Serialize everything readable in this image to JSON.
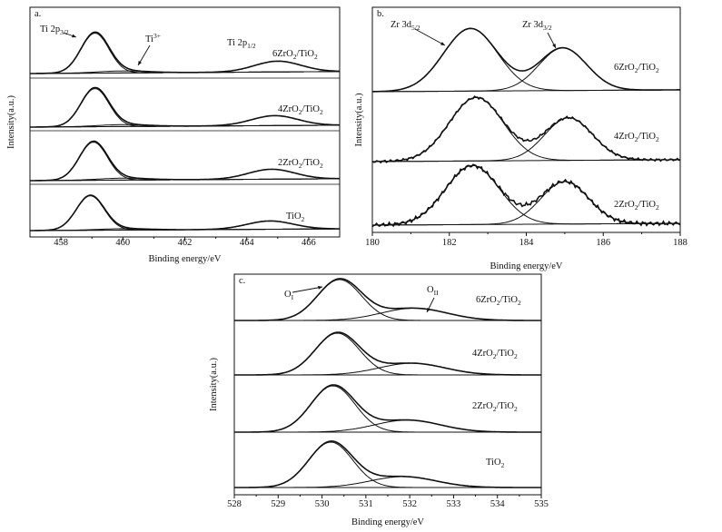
{
  "chart_data": [
    {
      "type": "line",
      "panel_label": "a.",
      "xlabel": "Binding energy/eV",
      "ylabel": "Intensity(a.u.)",
      "xlim": [
        457,
        467
      ],
      "xticks": [
        458,
        460,
        462,
        464,
        466
      ],
      "annotations": [
        {
          "text": "Ti 2p",
          "sub": "3/2"
        },
        {
          "text": "Ti",
          "sup": "3+"
        },
        {
          "text": "Ti 2p",
          "sub": "1/2"
        }
      ],
      "series": [
        {
          "name": "6ZrO2/TiO2",
          "label_main": "6ZrO",
          "label_sub1": "2",
          "label_mid": "/TiO",
          "label_sub2": "2",
          "peaks": [
            {
              "center": 459.1,
              "height": 1.0,
              "width": 0.45
            },
            {
              "center": 465.0,
              "height": 0.27,
              "width": 0.75
            },
            {
              "center": 460.0,
              "height": 0.05,
              "width": 0.8
            }
          ],
          "baseline_rise": 0.05
        },
        {
          "name": "4ZrO2/TiO2",
          "label_main": "4ZrO",
          "label_sub1": "2",
          "label_mid": "/TiO",
          "label_sub2": "2",
          "peaks": [
            {
              "center": 459.1,
              "height": 1.0,
              "width": 0.45
            },
            {
              "center": 464.9,
              "height": 0.26,
              "width": 0.75
            },
            {
              "center": 460.0,
              "height": 0.05,
              "width": 0.8
            }
          ],
          "baseline_rise": 0.05
        },
        {
          "name": "2ZrO2/TiO2",
          "label_main": "2ZrO",
          "label_sub1": "2",
          "label_mid": "/TiO",
          "label_sub2": "2",
          "peaks": [
            {
              "center": 459.05,
              "height": 1.0,
              "width": 0.45
            },
            {
              "center": 464.8,
              "height": 0.26,
              "width": 0.75
            },
            {
              "center": 460.0,
              "height": 0.05,
              "width": 0.8
            }
          ],
          "baseline_rise": 0.05
        },
        {
          "name": "TiO2",
          "label_main": "TiO",
          "label_sub1": "2",
          "label_mid": "",
          "label_sub2": "",
          "peaks": [
            {
              "center": 458.95,
              "height": 1.0,
              "width": 0.45
            },
            {
              "center": 464.75,
              "height": 0.24,
              "width": 0.75
            },
            {
              "center": 460.0,
              "height": 0.04,
              "width": 0.8
            }
          ],
          "baseline_rise": 0.05
        }
      ]
    },
    {
      "type": "line",
      "panel_label": "b.",
      "xlabel": "Binding energy/eV",
      "ylabel": "Intensity(a.u.)",
      "xlim": [
        180,
        188
      ],
      "xticks": [
        180,
        182,
        184,
        186,
        188
      ],
      "annotations": [
        {
          "text": "Zr 3d",
          "sub": "5/2"
        },
        {
          "text": "Zr 3d",
          "sub": "3/2"
        }
      ],
      "series": [
        {
          "name": "6ZrO2/TiO2",
          "label_main": "6ZrO",
          "label_sub1": "2",
          "label_mid": "/TiO",
          "label_sub2": "2",
          "peaks": [
            {
              "center": 182.55,
              "height": 1.0,
              "width": 0.7
            },
            {
              "center": 184.95,
              "height": 0.68,
              "width": 0.62
            }
          ],
          "noise": 0.0,
          "baseline_rise": 0.03
        },
        {
          "name": "4ZrO2/TiO2",
          "label_main": "4ZrO",
          "label_sub1": "2",
          "label_mid": "/TiO",
          "label_sub2": "2",
          "peaks": [
            {
              "center": 182.7,
              "height": 1.0,
              "width": 0.7
            },
            {
              "center": 185.1,
              "height": 0.67,
              "width": 0.62
            }
          ],
          "noise": 0.02,
          "baseline_rise": 0.03
        },
        {
          "name": "2ZrO2/TiO2",
          "label_main": "2ZrO",
          "label_sub1": "2",
          "label_mid": "/TiO",
          "label_sub2": "2",
          "peaks": [
            {
              "center": 182.6,
              "height": 1.0,
              "width": 0.7
            },
            {
              "center": 185.0,
              "height": 0.72,
              "width": 0.62
            }
          ],
          "noise": 0.035,
          "baseline_rise": 0.03
        }
      ]
    },
    {
      "type": "line",
      "panel_label": "c.",
      "xlabel": "Binding energy/eV",
      "ylabel": "Intensity(a.u.)",
      "xlim": [
        528,
        535
      ],
      "xticks": [
        528,
        529,
        530,
        531,
        532,
        533,
        534,
        535
      ],
      "annotations": [
        {
          "text": "O",
          "sub": "I"
        },
        {
          "text": "O",
          "sub": "II"
        }
      ],
      "series": [
        {
          "name": "6ZrO2/TiO2",
          "label_main": "6ZrO",
          "label_sub1": "2",
          "label_mid": "/TiO",
          "label_sub2": "2",
          "peaks": [
            {
              "center": 530.4,
              "height": 1.0,
              "width": 0.5
            },
            {
              "center": 532.1,
              "height": 0.3,
              "width": 0.75
            }
          ],
          "baseline_rise": 0.0
        },
        {
          "name": "4ZrO2/TiO2",
          "label_main": "4ZrO",
          "label_sub1": "2",
          "label_mid": "/TiO",
          "label_sub2": "2",
          "peaks": [
            {
              "center": 530.35,
              "height": 1.0,
              "width": 0.5
            },
            {
              "center": 532.05,
              "height": 0.28,
              "width": 0.75
            }
          ],
          "baseline_rise": 0.0
        },
        {
          "name": "2ZrO2/TiO2",
          "label_main": "2ZrO",
          "label_sub1": "2",
          "label_mid": "/TiO",
          "label_sub2": "2",
          "peaks": [
            {
              "center": 530.25,
              "height": 1.0,
              "width": 0.5
            },
            {
              "center": 531.95,
              "height": 0.26,
              "width": 0.75
            }
          ],
          "baseline_rise": 0.0
        },
        {
          "name": "TiO2",
          "label_main": "TiO",
          "label_sub1": "2",
          "label_mid": "",
          "label_sub2": "",
          "peaks": [
            {
              "center": 530.2,
              "height": 1.0,
              "width": 0.5
            },
            {
              "center": 531.85,
              "height": 0.24,
              "width": 0.75
            }
          ],
          "baseline_rise": 0.0
        }
      ]
    }
  ]
}
